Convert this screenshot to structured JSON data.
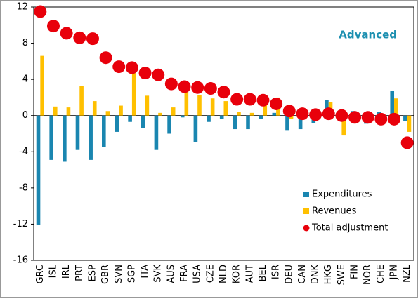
{
  "chart_data": {
    "type": "bar_dot",
    "title": "Advanced",
    "categories": [
      "GRC",
      "ISL",
      "IRL",
      "PRT",
      "ESP",
      "GBR",
      "SVN",
      "SGP",
      "ITA",
      "SVK",
      "AUS",
      "FRA",
      "USA",
      "CZE",
      "NLD",
      "KOR",
      "AUT",
      "BEL",
      "ISR",
      "DEU",
      "CAN",
      "DNK",
      "HKG",
      "SWE",
      "FIN",
      "NOR",
      "CHE",
      "JPN",
      "NZL"
    ],
    "series": [
      {
        "name": "Expenditures",
        "color": "#1a86b0",
        "kind": "bar",
        "values": [
          -12.1,
          -4.9,
          -5.1,
          -3.8,
          -4.9,
          -3.5,
          -1.8,
          -0.7,
          -1.4,
          -3.8,
          -2.0,
          -0.2,
          -2.9,
          -0.7,
          -0.4,
          -1.5,
          -1.5,
          -0.4,
          0.3,
          -1.6,
          -1.5,
          -0.8,
          1.7,
          0.1,
          0.5,
          -0.9,
          0.4,
          2.7,
          -0.6
        ]
      },
      {
        "name": "Revenues",
        "color": "#ffc000",
        "kind": "bar",
        "values": [
          6.6,
          1.0,
          0.9,
          3.3,
          1.6,
          0.5,
          1.1,
          4.7,
          2.2,
          0.3,
          0.9,
          3.0,
          2.3,
          1.9,
          1.6,
          0.4,
          0.3,
          1.3,
          2.0,
          -0.4,
          -0.4,
          -0.3,
          1.5,
          -2.2,
          0.4,
          -0.6,
          0.2,
          1.9,
          -1.8
        ]
      },
      {
        "name": "Total adjustment",
        "color": "#e8000b",
        "kind": "dot",
        "values": [
          11.5,
          9.9,
          9.1,
          8.6,
          8.5,
          6.4,
          5.4,
          5.3,
          4.7,
          4.5,
          3.5,
          3.2,
          3.1,
          3.0,
          2.6,
          1.8,
          1.8,
          1.7,
          1.3,
          0.5,
          0.2,
          0.1,
          0.2,
          0.0,
          -0.2,
          -0.2,
          -0.4,
          -0.4,
          -3.0
        ]
      }
    ],
    "ylim": [
      -16,
      12
    ],
    "yticks": [
      -16,
      -12,
      -8,
      -4,
      0,
      4,
      8,
      12
    ]
  }
}
